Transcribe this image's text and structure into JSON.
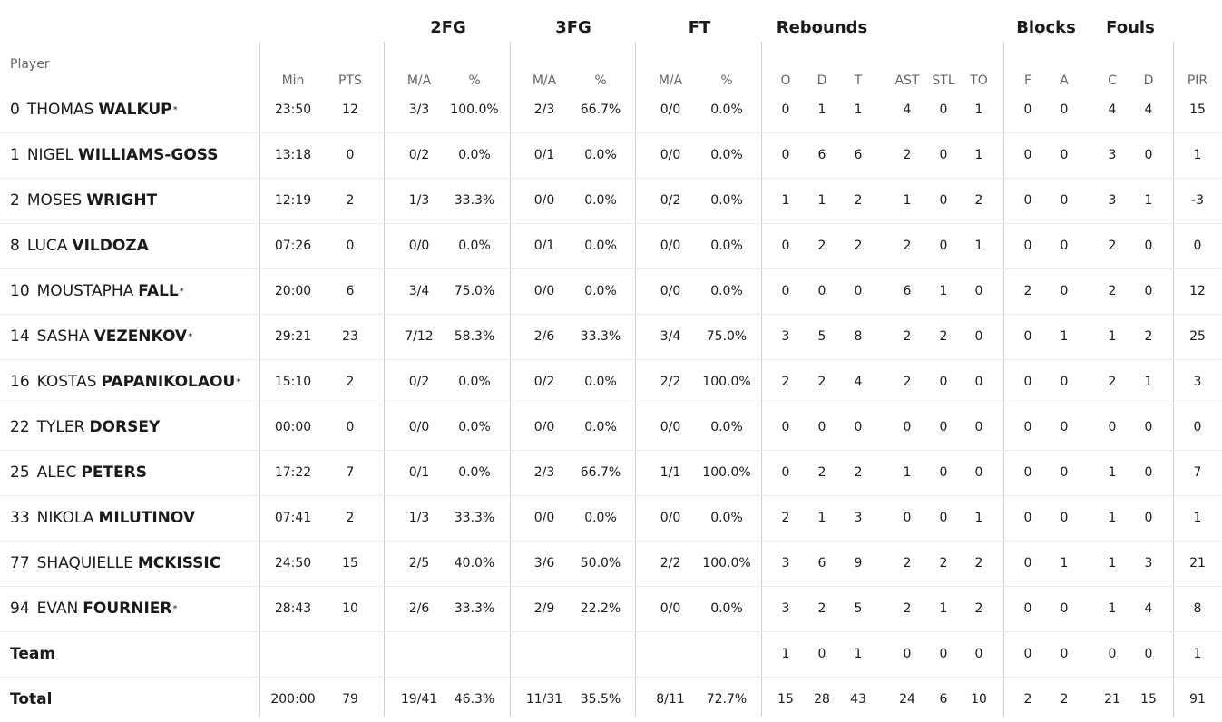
{
  "table": {
    "player_header": "Player",
    "groups": [
      "2FG",
      "3FG",
      "FT",
      "Rebounds",
      "Blocks",
      "Fouls"
    ],
    "columns": [
      "Min",
      "PTS",
      "M/A",
      "%",
      "M/A",
      "%",
      "M/A",
      "%",
      "O",
      "D",
      "T",
      "AST",
      "STL",
      "TO",
      "F",
      "A",
      "C",
      "D",
      "PIR"
    ],
    "rows": [
      {
        "number": "0",
        "first": "THOMAS",
        "last": "WALKUP",
        "starter": true,
        "stats": [
          "23:50",
          "12",
          "3/3",
          "100.0%",
          "2/3",
          "66.7%",
          "0/0",
          "0.0%",
          "0",
          "1",
          "1",
          "4",
          "0",
          "1",
          "0",
          "0",
          "4",
          "4",
          "15"
        ]
      },
      {
        "number": "1",
        "first": "NIGEL",
        "last": "WILLIAMS-GOSS",
        "starter": false,
        "stats": [
          "13:18",
          "0",
          "0/2",
          "0.0%",
          "0/1",
          "0.0%",
          "0/0",
          "0.0%",
          "0",
          "6",
          "6",
          "2",
          "0",
          "1",
          "0",
          "0",
          "3",
          "0",
          "1"
        ]
      },
      {
        "number": "2",
        "first": "MOSES",
        "last": "WRIGHT",
        "starter": false,
        "stats": [
          "12:19",
          "2",
          "1/3",
          "33.3%",
          "0/0",
          "0.0%",
          "0/2",
          "0.0%",
          "1",
          "1",
          "2",
          "1",
          "0",
          "2",
          "0",
          "0",
          "3",
          "1",
          "-3"
        ]
      },
      {
        "number": "8",
        "first": "LUCA",
        "last": "VILDOZA",
        "starter": false,
        "stats": [
          "07:26",
          "0",
          "0/0",
          "0.0%",
          "0/1",
          "0.0%",
          "0/0",
          "0.0%",
          "0",
          "2",
          "2",
          "2",
          "0",
          "1",
          "0",
          "0",
          "2",
          "0",
          "0"
        ]
      },
      {
        "number": "10",
        "first": "MOUSTAPHA",
        "last": "FALL",
        "starter": true,
        "stats": [
          "20:00",
          "6",
          "3/4",
          "75.0%",
          "0/0",
          "0.0%",
          "0/0",
          "0.0%",
          "0",
          "0",
          "0",
          "6",
          "1",
          "0",
          "2",
          "0",
          "2",
          "0",
          "12"
        ]
      },
      {
        "number": "14",
        "first": "SASHA",
        "last": "VEZENKOV",
        "starter": true,
        "stats": [
          "29:21",
          "23",
          "7/12",
          "58.3%",
          "2/6",
          "33.3%",
          "3/4",
          "75.0%",
          "3",
          "5",
          "8",
          "2",
          "2",
          "0",
          "0",
          "1",
          "1",
          "2",
          "25"
        ]
      },
      {
        "number": "16",
        "first": "KOSTAS",
        "last": "PAPANIKOLAOU",
        "starter": true,
        "stats": [
          "15:10",
          "2",
          "0/2",
          "0.0%",
          "0/2",
          "0.0%",
          "2/2",
          "100.0%",
          "2",
          "2",
          "4",
          "2",
          "0",
          "0",
          "0",
          "0",
          "2",
          "1",
          "3"
        ]
      },
      {
        "number": "22",
        "first": "TYLER",
        "last": "DORSEY",
        "starter": false,
        "stats": [
          "00:00",
          "0",
          "0/0",
          "0.0%",
          "0/0",
          "0.0%",
          "0/0",
          "0.0%",
          "0",
          "0",
          "0",
          "0",
          "0",
          "0",
          "0",
          "0",
          "0",
          "0",
          "0"
        ]
      },
      {
        "number": "25",
        "first": "ALEC",
        "last": "PETERS",
        "starter": false,
        "stats": [
          "17:22",
          "7",
          "0/1",
          "0.0%",
          "2/3",
          "66.7%",
          "1/1",
          "100.0%",
          "0",
          "2",
          "2",
          "1",
          "0",
          "0",
          "0",
          "0",
          "1",
          "0",
          "7"
        ]
      },
      {
        "number": "33",
        "first": "NIKOLA",
        "last": "MILUTINOV",
        "starter": false,
        "stats": [
          "07:41",
          "2",
          "1/3",
          "33.3%",
          "0/0",
          "0.0%",
          "0/0",
          "0.0%",
          "2",
          "1",
          "3",
          "0",
          "0",
          "1",
          "0",
          "0",
          "1",
          "0",
          "1"
        ]
      },
      {
        "number": "77",
        "first": "SHAQUIELLE",
        "last": "MCKISSIC",
        "starter": false,
        "stats": [
          "24:50",
          "15",
          "2/5",
          "40.0%",
          "3/6",
          "50.0%",
          "2/2",
          "100.0%",
          "3",
          "6",
          "9",
          "2",
          "2",
          "2",
          "0",
          "1",
          "1",
          "3",
          "21"
        ]
      },
      {
        "number": "94",
        "first": "EVAN",
        "last": "FOURNIER",
        "starter": true,
        "stats": [
          "28:43",
          "10",
          "2/6",
          "33.3%",
          "2/9",
          "22.2%",
          "0/0",
          "0.0%",
          "3",
          "2",
          "5",
          "2",
          "1",
          "2",
          "0",
          "0",
          "1",
          "4",
          "8"
        ]
      },
      {
        "label": "Team",
        "stats": [
          "",
          "",
          "",
          "",
          "",
          "",
          "",
          "",
          "1",
          "0",
          "1",
          "0",
          "0",
          "0",
          "0",
          "0",
          "0",
          "0",
          "1"
        ]
      },
      {
        "label": "Total",
        "stats": [
          "200:00",
          "79",
          "19/41",
          "46.3%",
          "11/31",
          "35.5%",
          "8/11",
          "72.7%",
          "15",
          "28",
          "43",
          "24",
          "6",
          "10",
          "2",
          "2",
          "21",
          "15",
          "91"
        ]
      }
    ]
  }
}
